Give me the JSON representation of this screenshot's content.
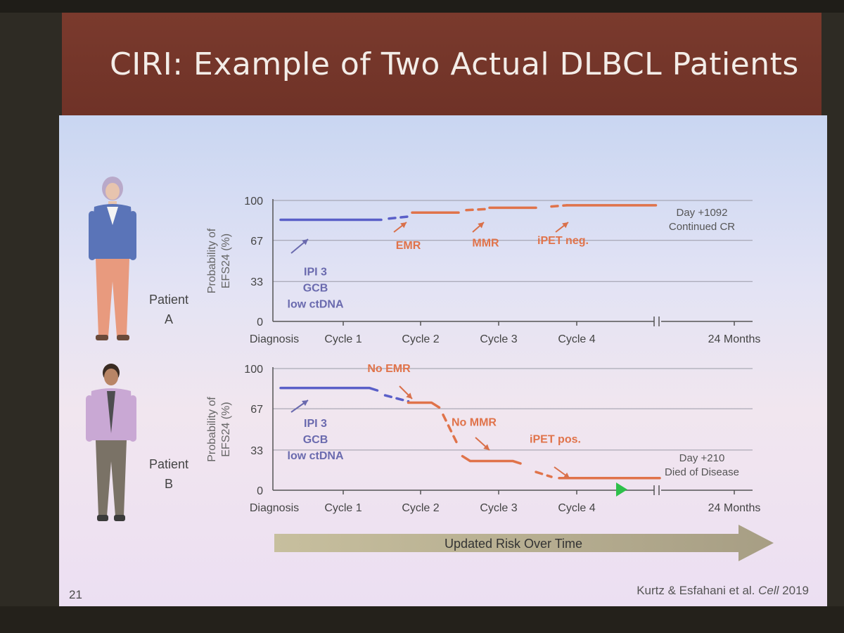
{
  "slide": {
    "title": "CIRI: Example of Two Actual DLBCL Patients",
    "slide_number": "21",
    "citation_authors": "Kurtz & Esfahani et al.",
    "citation_journal": "Cell",
    "citation_year": "2019",
    "arrow_label": "Updated Risk Over Time"
  },
  "colors": {
    "blue_series": "#5a5fc8",
    "orange_series": "#e0734a",
    "text_purple": "#6a6aae",
    "annotation_orange": "#d9704a",
    "axis": "#555555",
    "arrow_band": "#b7ae93",
    "marker": "#2ec04a"
  },
  "chart_data": [
    {
      "type": "line",
      "panel_label_line1": "Patient",
      "panel_label_line2": "A",
      "ylabel_line1": "Probability of",
      "ylabel_line2": "EFS24 (%)",
      "yticks": [
        0,
        33,
        67,
        100
      ],
      "ylim": [
        0,
        100
      ],
      "x_ticks": [
        "Diagnosis",
        "Cycle 1",
        "Cycle 2",
        "Cycle 3",
        "Cycle 4",
        "24 Months"
      ],
      "series": [
        {
          "color": "blue",
          "style": "solid",
          "x": [
            0.1,
            1.4
          ],
          "y": [
            84,
            84
          ]
        },
        {
          "color": "blue",
          "style": "dashed",
          "x": [
            1.5,
            1.8
          ],
          "y": [
            85,
            87
          ]
        },
        {
          "color": "orange",
          "style": "solid",
          "x": [
            1.8,
            2.4
          ],
          "y": [
            90,
            90
          ]
        },
        {
          "color": "orange",
          "style": "dashed",
          "x": [
            2.5,
            2.8
          ],
          "y": [
            92,
            93
          ]
        },
        {
          "color": "orange",
          "style": "solid",
          "x": [
            2.8,
            3.4
          ],
          "y": [
            94,
            94
          ]
        },
        {
          "color": "orange",
          "style": "dashed",
          "x": [
            3.6,
            3.8
          ],
          "y": [
            95,
            96
          ]
        },
        {
          "color": "orange",
          "style": "solid",
          "x": [
            3.8,
            4.95
          ],
          "y": [
            96,
            96
          ]
        }
      ],
      "annotations": [
        {
          "lines": [
            "IPI 3",
            "GCB",
            "low ctDNA"
          ],
          "color": "purple",
          "x": 0.55,
          "y": 38
        },
        {
          "lines": [
            "EMR"
          ],
          "color": "orange",
          "x": 1.75,
          "y": 60
        },
        {
          "lines": [
            "MMR"
          ],
          "color": "orange",
          "x": 2.75,
          "y": 62
        },
        {
          "lines": [
            "iPET neg."
          ],
          "color": "orange",
          "x": 3.75,
          "y": 64
        }
      ],
      "end_note": [
        "Day +1092",
        "Continued CR"
      ]
    },
    {
      "type": "line",
      "panel_label_line1": "Patient",
      "panel_label_line2": "B",
      "ylabel_line1": "Probability of",
      "ylabel_line2": "EFS24 (%)",
      "yticks": [
        0,
        33,
        67,
        100
      ],
      "ylim": [
        0,
        100
      ],
      "x_ticks": [
        "Diagnosis",
        "Cycle 1",
        "Cycle 2",
        "Cycle 3",
        "Cycle 4",
        "24 Months"
      ],
      "series": [
        {
          "color": "blue",
          "style": "solid",
          "x": [
            0.1,
            1.25,
            1.35
          ],
          "y": [
            84,
            84,
            82
          ]
        },
        {
          "color": "blue",
          "style": "dashed",
          "x": [
            1.45,
            1.75
          ],
          "y": [
            78,
            73
          ]
        },
        {
          "color": "orange",
          "style": "solid",
          "x": [
            1.75,
            2.05,
            2.15
          ],
          "y": [
            72,
            72,
            68
          ]
        },
        {
          "color": "orange",
          "style": "dashed",
          "x": [
            2.2,
            2.4
          ],
          "y": [
            62,
            36
          ]
        },
        {
          "color": "orange",
          "style": "solid",
          "x": [
            2.45,
            2.55,
            3.1,
            3.2
          ],
          "y": [
            28,
            24,
            24,
            22
          ]
        },
        {
          "color": "orange",
          "style": "dashed",
          "x": [
            3.4,
            3.6
          ],
          "y": [
            15,
            11
          ]
        },
        {
          "color": "orange",
          "style": "solid",
          "x": [
            3.7,
            5.0
          ],
          "y": [
            10,
            10
          ]
        }
      ],
      "annotations": [
        {
          "lines": [
            "No EMR"
          ],
          "color": "orange",
          "x": 1.5,
          "y": 97
        },
        {
          "lines": [
            "IPI 3",
            "GCB",
            "low ctDNA"
          ],
          "color": "purple",
          "x": 0.55,
          "y": 52
        },
        {
          "lines": [
            "No MMR"
          ],
          "color": "orange",
          "x": 2.6,
          "y": 53
        },
        {
          "lines": [
            "iPET pos."
          ],
          "color": "orange",
          "x": 3.65,
          "y": 39
        }
      ],
      "end_note": [
        "Day +210",
        "Died of Disease"
      ]
    }
  ]
}
